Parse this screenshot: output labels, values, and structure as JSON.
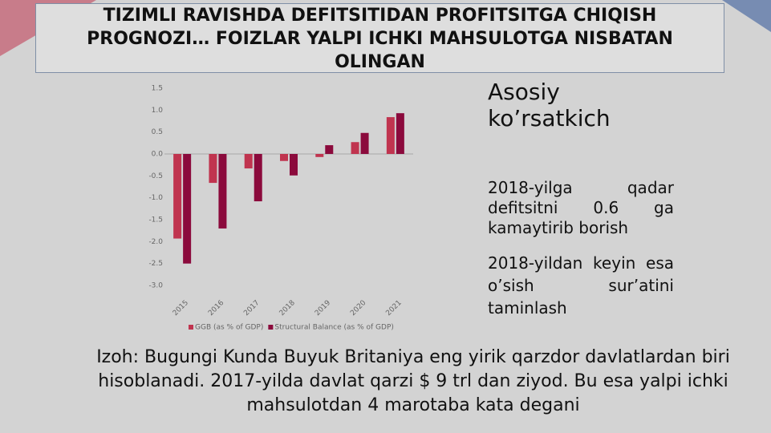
{
  "chart_data": {
    "type": "bar",
    "title": "TIZIMLI RAVISHDA DEFITSITIDAN PROFITSITGA CHIQISH PROGNOZI…  FOIZLAR YALPI ICHKI MAHSULOTGA NISBATAN OLINGAN",
    "categories": [
      "2015",
      "2016",
      "2017",
      "2018",
      "2019",
      "2020",
      "2021"
    ],
    "series": [
      {
        "name": "GGB (as % of GDP)",
        "color": "#c0344f",
        "values": [
          -1.93,
          -0.66,
          -0.33,
          -0.16,
          -0.07,
          0.27,
          0.84
        ]
      },
      {
        "name": "Structural Balance (as % of GDP)",
        "color": "#8b0a3c",
        "values": [
          -2.5,
          -1.7,
          -1.08,
          -0.49,
          0.2,
          0.48,
          0.93
        ]
      }
    ],
    "ylim": [
      -3.0,
      1.5
    ],
    "yticks": [
      {
        "value": 1.5,
        "label": "1.5"
      },
      {
        "value": 1,
        "label": "1.0"
      },
      0.5,
      {
        "value": 0,
        "label": "0.0"
      },
      -0.5,
      {
        "value": -1,
        "label": "-1.0"
      },
      -1.5,
      {
        "value": -2,
        "label": "-2.0"
      },
      -2.5,
      {
        "value": -3,
        "label": "-3.0"
      }
    ],
    "legend": "bottom"
  },
  "heading": "Asosiy ko’rsatkich",
  "points": [
    "2018-yilga qadar defitsitni 0.6 ga kamaytirib borish",
    "2018-yildan keyin esa o’sish sur’atini taminlash"
  ],
  "note": "Izoh: Bugungi Kunda Buyuk Britaniya eng yirik qarzdor davlatlardan biri hisoblanadi. 2017-yilda davlat qarzi $ 9 trl dan ziyod. Bu esa yalpi ichki mahsulotdan 4 marotaba kata degani"
}
